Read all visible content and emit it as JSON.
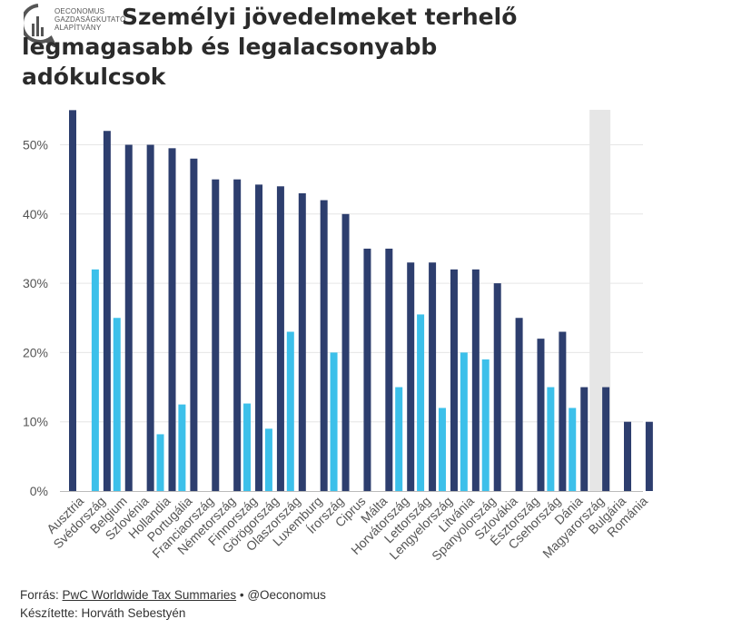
{
  "header": {
    "logo_lines": [
      "OECONOMUS",
      "GAZDASÁGKUTATÓ",
      "ALAPÍTVÁNY"
    ],
    "title": "Személyi jövedelmeket terhelő legmagasabb és legalacsonyabb adókulcsok"
  },
  "footer": {
    "source_prefix": "Forrás:",
    "source_link": "PwC Worldwide Tax Summaries",
    "source_suffix": "• @Oeconomus",
    "author": "Készítette: Horváth Sebestyén"
  },
  "colors": {
    "highest": "#2d3e6e",
    "lowest": "#3cc0ea",
    "highlight_band": "#e6e6e6",
    "grid": "#e6e6e6"
  },
  "chart_data": {
    "type": "bar",
    "categories": [
      "Ausztria",
      "Svédország",
      "Belgium",
      "Szlovénia",
      "Hollandia",
      "Portugália",
      "Franciaország",
      "Németország",
      "Finnország",
      "Görögország",
      "Olaszország",
      "Luxemburg",
      "Írország",
      "Ciprus",
      "Málta",
      "Horvátország",
      "Lettország",
      "Lengyelország",
      "Litvánia",
      "Spanyolország",
      "Szlovákia",
      "Észtország",
      "Csehország",
      "Dánia",
      "Magyarország",
      "Bulgária",
      "Románia"
    ],
    "series": [
      {
        "values": [
          55,
          52,
          50,
          50,
          49.5,
          48,
          45,
          45,
          44.25,
          44,
          43,
          42,
          40,
          35,
          35,
          33,
          33,
          32,
          32,
          30,
          25,
          22,
          23,
          15,
          15,
          10,
          10
        ]
      },
      {
        "values": [
          null,
          32,
          25,
          null,
          8.2,
          12.5,
          null,
          null,
          12.64,
          9,
          23,
          null,
          20,
          null,
          null,
          15,
          25.5,
          12,
          20,
          19,
          null,
          null,
          15,
          12,
          null,
          null,
          null
        ]
      }
    ],
    "highlight_category": "Magyarország",
    "yticks": [
      "0%",
      "10%",
      "20%",
      "30%",
      "40%",
      "50%"
    ],
    "ylim": [
      0,
      55
    ],
    "grid": true
  }
}
